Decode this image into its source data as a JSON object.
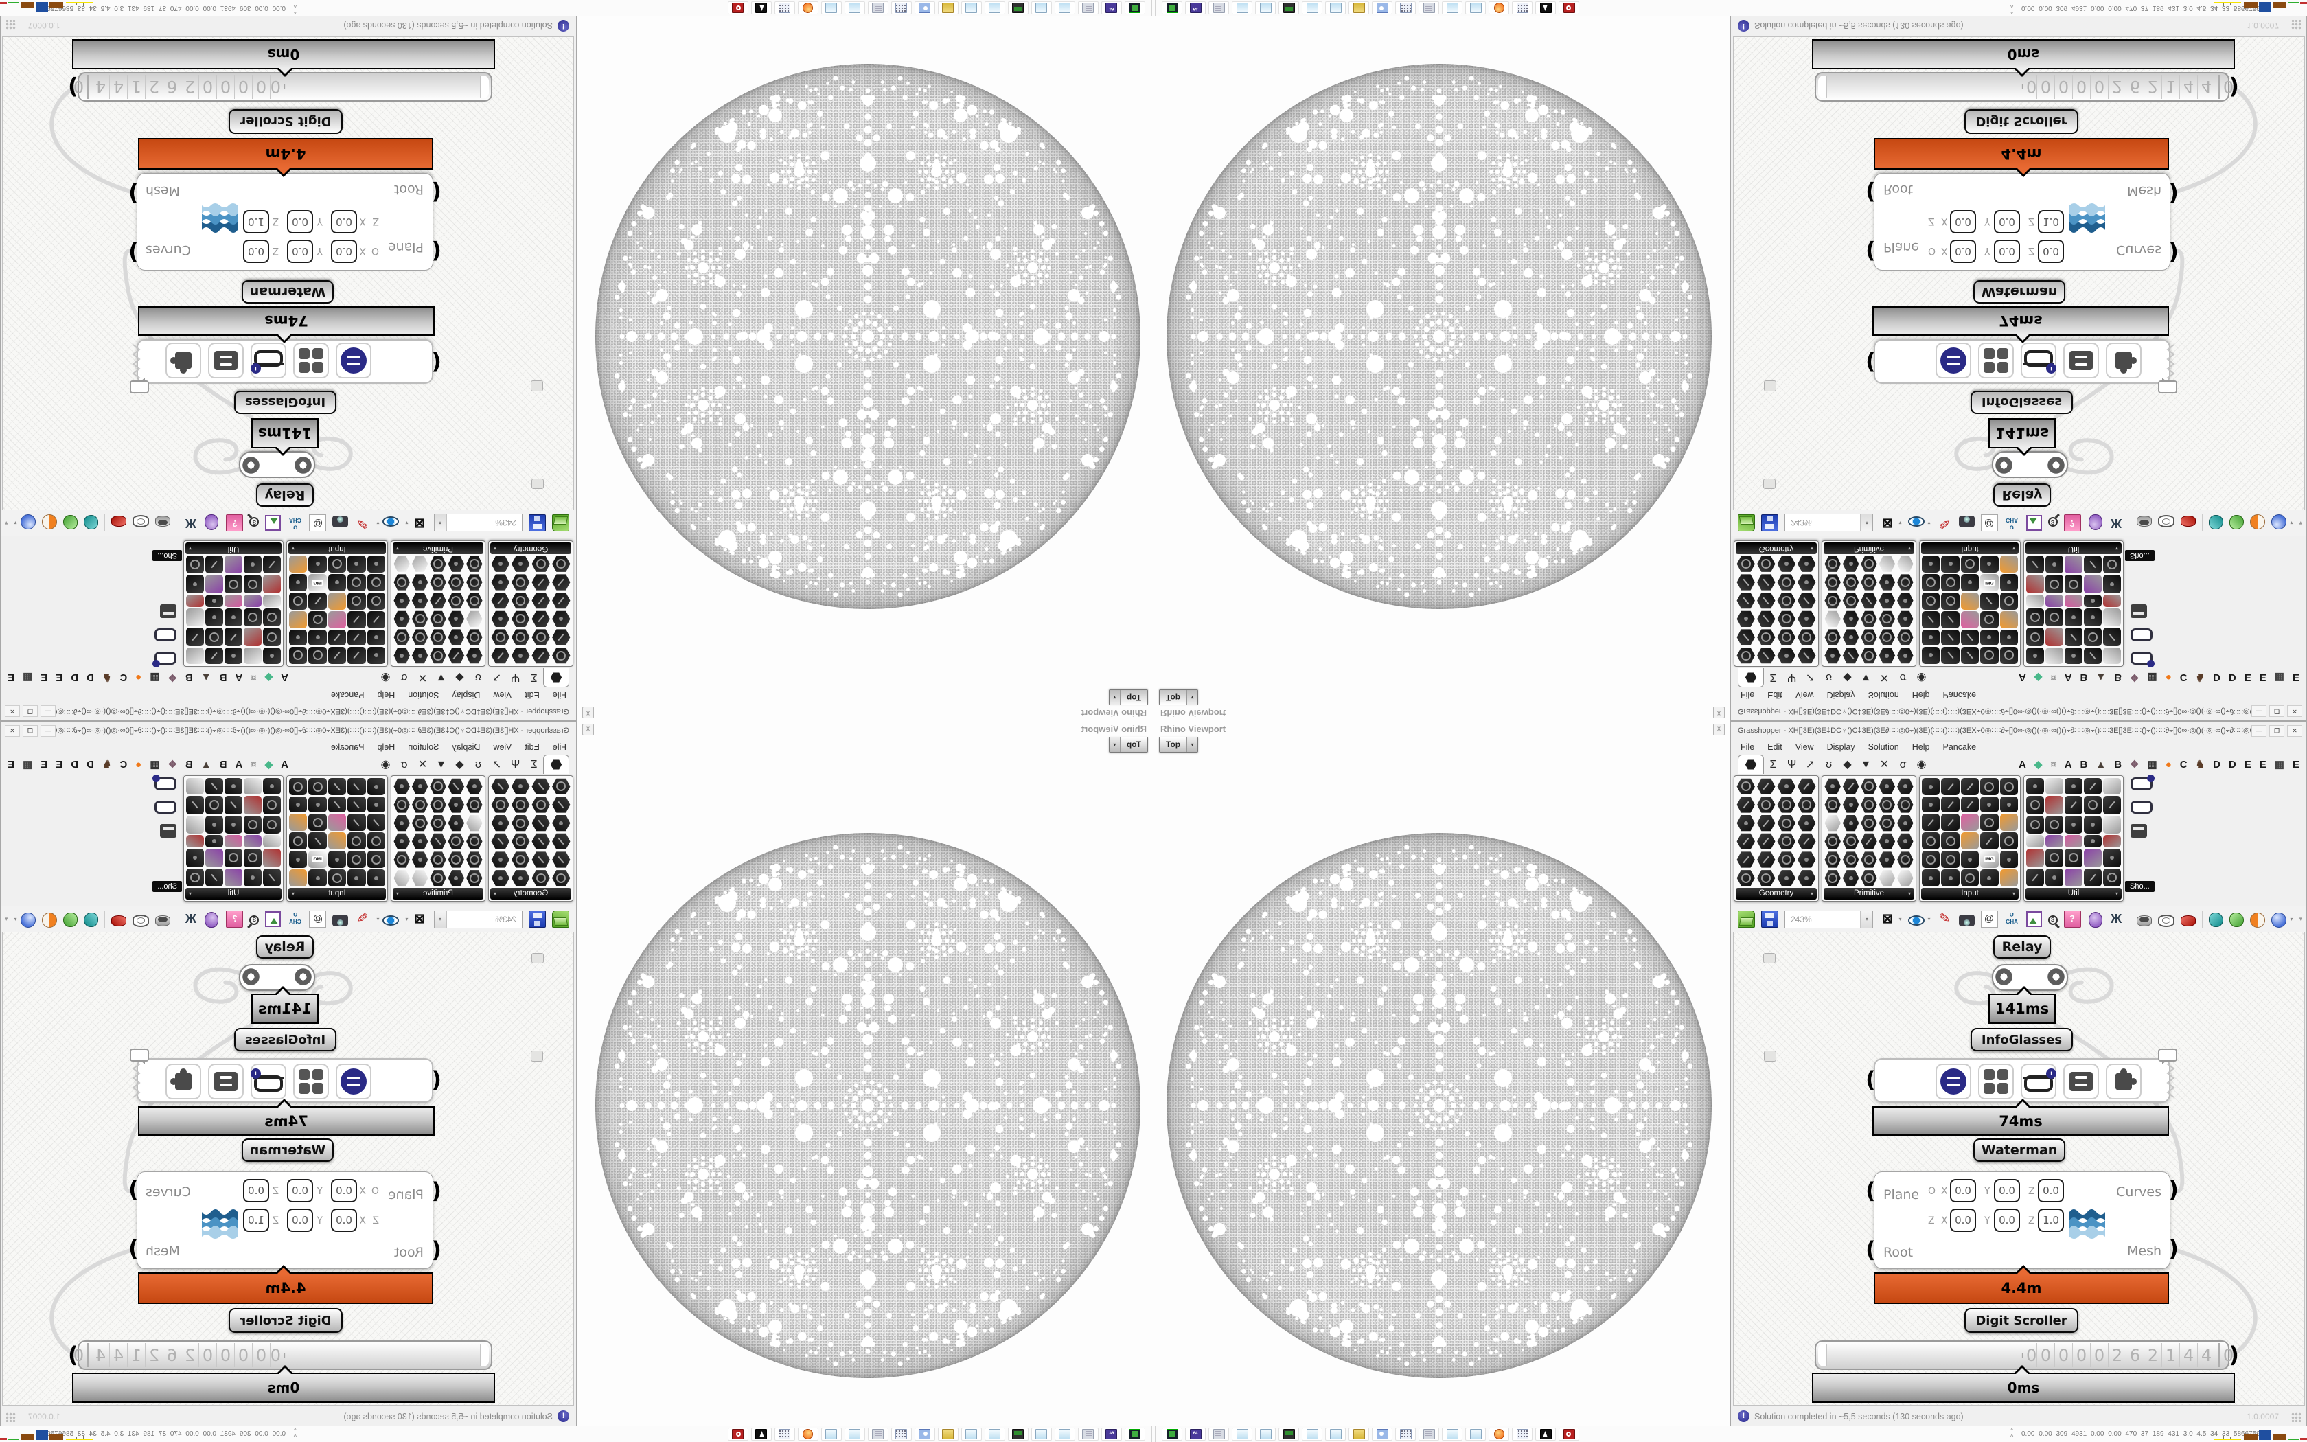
{
  "rhino": {
    "panel_title": "Rhino Viewport",
    "viewport_label": "Top",
    "dropdown_glyph": "▾",
    "close_glyph": "x"
  },
  "grasshopper": {
    "title": "Grasshopper - XH[]3E)(3E‡DC♀()C‡3E)(3E∂∷∷◎0÷)(3E)(∷∷()∷∷)(3EX÷0◎∷∷∂÷[]0∞·◎()(·◎·∞()()÷∂∷∷◎÷()∷∷3E[]3E∷∷()÷()∷∷∂÷[]0∞·◎()(·◎·∞()÷∂∷∷◎0÷)(3E)(∷∷()...",
    "window_buttons": [
      "—",
      "❐",
      "✕"
    ],
    "menu": [
      "File",
      "Edit",
      "View",
      "Display",
      "Solution",
      "Help",
      "Pancake"
    ],
    "category_tabs": [
      "hexagon",
      "Σ",
      "Ψ",
      "↗",
      "ʊ",
      "◆",
      "▼",
      "✕",
      "σ",
      "◉"
    ],
    "plugin_tabs": [
      {
        "g": "A",
        "c": "#1a1a1a"
      },
      {
        "g": "◆",
        "c": "#49b88a"
      },
      {
        "g": "¤",
        "c": "#9a9a9a"
      },
      {
        "g": "A",
        "c": "#1a1a1a"
      },
      {
        "g": "B",
        "c": "#1a1a1a"
      },
      {
        "g": "▲",
        "c": "#4a4038"
      },
      {
        "g": "B",
        "c": "#1a1a1a"
      },
      {
        "g": "❖",
        "c": "#7a5a6a"
      },
      {
        "g": "▦",
        "c": "#333333"
      },
      {
        "g": "●",
        "c": "#f07818"
      },
      {
        "g": "C",
        "c": "#1a1a1a"
      },
      {
        "g": "♞",
        "c": "#5a3c28"
      },
      {
        "g": "D",
        "c": "#1a1a1a"
      },
      {
        "g": "D",
        "c": "#1a1a1a"
      },
      {
        "g": "E",
        "c": "#1a1a1a"
      },
      {
        "g": "E",
        "c": "#1a1a1a"
      },
      {
        "g": "▩",
        "c": "#444444"
      },
      {
        "g": "E",
        "c": "#1a1a1a"
      }
    ],
    "palettes": [
      {
        "name": "Geometry",
        "cols": 4,
        "shape": "hex",
        "accents": []
      },
      {
        "name": "Primitive",
        "cols": 5,
        "shape": "hex",
        "accents": [
          "#ffffff"
        ]
      },
      {
        "name": "Input",
        "cols": 5,
        "shape": "square",
        "accents": [
          "#f2c51d",
          "#e05fa0",
          "#6abf4b",
          "#f29a2e",
          "#ffffff"
        ],
        "badges": [
          "3DM",
          "XYZ",
          "IMG",
          "PDB",
          "SHP",
          "AUG"
        ]
      },
      {
        "name": "Util",
        "cols": 5,
        "shape": "square",
        "accents": [
          "#b03030",
          "#8a3fa8",
          "#e07820",
          "#d657a0",
          "#efefef"
        ],
        "badges": [
          "REC",
          "Pr",
          "f(x)",
          "ABC",
          "ID.",
          "7"
        ]
      }
    ],
    "palette_overflow_tooltip": "Sho...",
    "toolbar": {
      "zoom_value": "243%",
      "icons": [
        "open-file",
        "save-file",
        "zoom-combo",
        "frame-target",
        "dropdown",
        "eye-preview",
        "dropdown",
        "sketch-pen",
        "camera",
        "publish-at",
        "gha-recycle",
        "image-capture",
        "search-s",
        "gift-question",
        "bulb-purple",
        "dna-splice",
        "sep",
        "cylinder-gray",
        "cylinder-wire",
        "cylinder-red",
        "sep",
        "jug-teal",
        "jug-green",
        "ball-orange",
        "ball-blue",
        "dropdown"
      ],
      "gha_label": "GHA",
      "overflow_glyph": "▾"
    },
    "canvas": {
      "nodes": {
        "relay": {
          "label": "Relay",
          "time": "141ms"
        },
        "infoglasses": {
          "label": "InfoGlasses",
          "time": "74ms",
          "buttons": [
            "menu-circle",
            "grid-four",
            "goggles",
            "drawers",
            "puzzle"
          ],
          "badge": "i"
        },
        "waterman": {
          "label": "Waterman",
          "time": "4.4m",
          "inputs": [
            "Plane",
            "Root"
          ],
          "outputs": [
            "Curves",
            "Mesh"
          ],
          "rows": [
            {
              "prefix": "O",
              "fields": [
                {
                  "axis": "X",
                  "value": "0.0"
                },
                {
                  "axis": "Y",
                  "value": "0.0"
                },
                {
                  "axis": "Z",
                  "value": "0.0"
                }
              ]
            },
            {
              "prefix": "Z",
              "fields": [
                {
                  "axis": "X",
                  "value": "0.0"
                },
                {
                  "axis": "Y",
                  "value": "0.0"
                },
                {
                  "axis": "Z",
                  "value": "1.0"
                }
              ]
            }
          ]
        },
        "digit_scroller": {
          "label": "Digit Scroller",
          "time": "0ms",
          "sign": "+",
          "digits": [
            "0",
            "0",
            "0",
            "0",
            "0",
            "2",
            "6",
            "2",
            "1",
            "4",
            "4",
            "0"
          ]
        }
      }
    },
    "status": {
      "message": "Solution completed in ~5,5 seconds (130 seconds ago)",
      "version": "1.0.0007"
    }
  },
  "taskbar": {
    "buttons": [
      "floppy-green",
      "floppy-purple",
      "scroll",
      "notepad",
      "notepad",
      "monitor",
      "notepad",
      "notepad",
      "folder-yellow",
      "settings-blue",
      "calculator",
      "scroll",
      "notepad",
      "notepad",
      "firefox",
      "calculator",
      "chess",
      "ruby"
    ],
    "floppy_purple_label": "64",
    "system_monitor": {
      "values": "0.00 0.00 309 4931 0.00 0.00 470 37 189 431 3.0 4.5 34 33 58667592",
      "chevron": "^"
    }
  },
  "colors": {
    "bottleneck_bar": "#d4511b",
    "navy_accent": "#2a2a86",
    "wire": "#d9d9d9",
    "canvas_bg": "#f8f8f6",
    "time_bar": "#c9c9c9"
  }
}
